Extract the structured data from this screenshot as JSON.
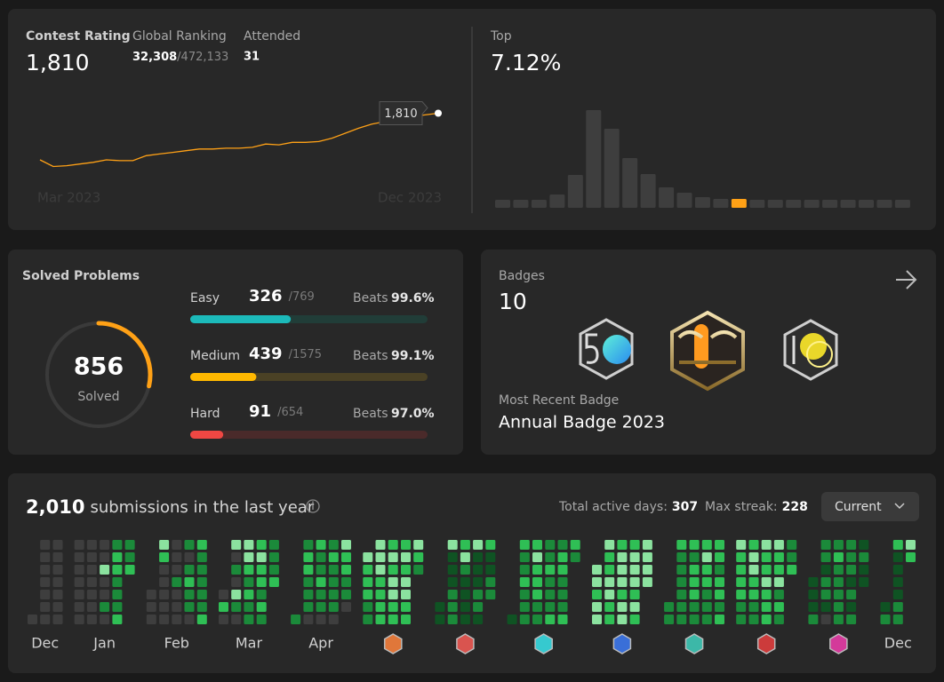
{
  "contest": {
    "rating_label": "Contest Rating",
    "rating": "1,810",
    "ranking_label": "Global Ranking",
    "ranking": "32,308",
    "ranking_total": "/472,133",
    "attended_label": "Attended",
    "attended": "31"
  },
  "chart_data": [
    {
      "type": "line",
      "x_labels": [
        "Mar 2023",
        "Dec 2023"
      ],
      "color": "#ffa116",
      "ylim": [
        1450,
        1850
      ],
      "values": [
        1530,
        1490,
        1495,
        1505,
        1515,
        1530,
        1525,
        1525,
        1555,
        1565,
        1575,
        1585,
        1595,
        1595,
        1600,
        1600,
        1605,
        1625,
        1620,
        1635,
        1635,
        1640,
        1660,
        1690,
        1720,
        1745,
        1760,
        1755,
        1790,
        1800,
        1810
      ]
    },
    {
      "type": "bar",
      "title": "Top",
      "subtitle": "7.12%",
      "color": "#3e3e3e",
      "highlight_index": 13,
      "highlight_color": "#ffa116",
      "ylim": [
        0,
        110
      ],
      "values": [
        9,
        9,
        9,
        15,
        37,
        110,
        89,
        56,
        38,
        23,
        17,
        12,
        10,
        10,
        9,
        9,
        9,
        9,
        9,
        9,
        9,
        9,
        9
      ]
    }
  ],
  "solved": {
    "title": "Solved Problems",
    "total": 856,
    "total_label": "Solved",
    "beats_label": "Beats",
    "difficulties": [
      {
        "name": "Easy",
        "solved": 326,
        "total": 769,
        "total_label": "/769",
        "beats": "99.6%",
        "color": "#1cbaba",
        "track": "#213d38"
      },
      {
        "name": "Medium",
        "solved": 439,
        "total": 1575,
        "total_label": "/1575",
        "beats": "99.1%",
        "color": "#ffb800",
        "track": "#4a4125"
      },
      {
        "name": "Hard",
        "solved": 91,
        "total": 654,
        "total_label": "/654",
        "beats": "97.0%",
        "color": "#ef4743",
        "track": "#4a2a2a"
      }
    ]
  },
  "badges": {
    "title": "Badges",
    "count": "10",
    "recent_label": "Most Recent Badge",
    "recent": "Annual Badge 2023"
  },
  "submissions": {
    "count": "2,010",
    "text": "submissions in the last year",
    "active_label": "Total active days:",
    "active": "307",
    "streak_label": "Max streak:",
    "streak": "228",
    "dropdown": "Current",
    "level_colors": [
      "#3e3e3e",
      "#0f5323",
      "#1b8a3a",
      "#2fbf55",
      "#8be29f"
    ],
    "months": [
      {
        "label": "Dec",
        "weeks": [
          [
            null,
            null,
            null,
            null,
            null,
            null,
            0
          ],
          [
            0,
            0,
            0,
            0,
            0,
            0,
            0
          ],
          [
            0,
            0,
            0,
            0,
            0,
            0,
            0
          ]
        ]
      },
      {
        "label": "Jan",
        "weeks": [
          [
            0,
            0,
            0,
            0,
            0,
            0,
            0
          ],
          [
            0,
            0,
            0,
            0,
            0,
            0,
            0
          ],
          [
            0,
            0,
            4,
            0,
            0,
            2,
            0
          ],
          [
            2,
            3,
            3,
            2,
            2,
            2,
            3
          ],
          [
            2,
            2,
            3,
            null,
            null,
            null,
            null
          ]
        ]
      },
      {
        "label": "Feb",
        "weeks": [
          [
            null,
            null,
            null,
            null,
            0,
            0,
            0
          ],
          [
            4,
            3,
            0,
            0,
            0,
            0,
            0
          ],
          [
            0,
            0,
            0,
            2,
            0,
            0,
            0
          ],
          [
            2,
            0,
            2,
            3,
            2,
            2,
            0
          ],
          [
            3,
            2,
            2,
            2,
            2,
            2,
            3
          ]
        ]
      },
      {
        "label": "Mar",
        "weeks": [
          [
            null,
            null,
            null,
            null,
            0,
            3,
            0
          ],
          [
            4,
            0,
            2,
            0,
            4,
            2,
            0
          ],
          [
            4,
            4,
            3,
            2,
            3,
            2,
            2
          ],
          [
            3,
            4,
            3,
            3,
            2,
            3,
            2
          ],
          [
            2,
            2,
            2,
            3,
            null,
            null,
            null
          ]
        ]
      },
      {
        "label": "Apr",
        "weeks": [
          [
            null,
            null,
            null,
            null,
            null,
            null,
            2
          ],
          [
            2,
            3,
            3,
            2,
            2,
            2,
            0
          ],
          [
            3,
            2,
            2,
            3,
            2,
            2,
            0
          ],
          [
            2,
            3,
            2,
            2,
            2,
            2,
            0
          ],
          [
            4,
            3,
            3,
            2,
            2,
            0,
            null
          ]
        ]
      },
      {
        "label": null,
        "icon_color": "#e0773a",
        "weeks": [
          [
            null,
            4,
            3,
            3,
            3,
            2,
            2
          ],
          [
            4,
            4,
            4,
            3,
            3,
            3,
            3
          ],
          [
            3,
            4,
            3,
            4,
            4,
            3,
            3
          ],
          [
            3,
            4,
            3,
            4,
            4,
            3,
            3
          ],
          [
            4,
            3,
            2,
            null,
            null,
            null,
            null
          ]
        ]
      },
      {
        "label": null,
        "icon_color": "#d9544f",
        "weeks": [
          [
            null,
            null,
            null,
            null,
            null,
            1,
            1
          ],
          [
            4,
            1,
            1,
            1,
            2,
            2,
            2
          ],
          [
            3,
            4,
            2,
            1,
            1,
            1,
            1
          ],
          [
            4,
            1,
            1,
            1,
            2,
            2,
            1
          ],
          [
            3,
            1,
            1,
            2,
            2,
            null,
            null
          ]
        ]
      },
      {
        "label": null,
        "icon_color": "#36c9cf",
        "weeks": [
          [
            null,
            null,
            null,
            null,
            null,
            null,
            1
          ],
          [
            3,
            2,
            2,
            3,
            2,
            2,
            2
          ],
          [
            3,
            4,
            3,
            3,
            3,
            2,
            2
          ],
          [
            2,
            2,
            3,
            2,
            2,
            2,
            3
          ],
          [
            2,
            3,
            3,
            2,
            2,
            2,
            3
          ],
          [
            3,
            2,
            null,
            null,
            null,
            null,
            null
          ]
        ]
      },
      {
        "label": null,
        "icon_color": "#3a6fd8",
        "weeks": [
          [
            null,
            null,
            4,
            4,
            3,
            4,
            4
          ],
          [
            4,
            3,
            3,
            4,
            4,
            3,
            3
          ],
          [
            3,
            4,
            4,
            4,
            3,
            4,
            4
          ],
          [
            3,
            4,
            4,
            4,
            3,
            4,
            3
          ],
          [
            4,
            4,
            4,
            4,
            null,
            null,
            null
          ]
        ]
      },
      {
        "label": null,
        "icon_color": "#3cb8a8",
        "weeks": [
          [
            null,
            null,
            null,
            null,
            null,
            2,
            2
          ],
          [
            3,
            2,
            2,
            2,
            2,
            2,
            2
          ],
          [
            3,
            2,
            3,
            3,
            3,
            2,
            2
          ],
          [
            3,
            4,
            3,
            3,
            2,
            2,
            2
          ],
          [
            3,
            3,
            2,
            3,
            3,
            2,
            3
          ]
        ]
      },
      {
        "label": null,
        "icon_color": "#cc3b3b",
        "weeks": [
          [
            4,
            3,
            3,
            3,
            3,
            2,
            2
          ],
          [
            3,
            4,
            4,
            3,
            3,
            2,
            2
          ],
          [
            4,
            3,
            3,
            4,
            3,
            3,
            3
          ],
          [
            4,
            3,
            3,
            4,
            2,
            3,
            2
          ],
          [
            2,
            2,
            3,
            null,
            null,
            null,
            null
          ]
        ]
      },
      {
        "label": null,
        "icon_color": "#d43a9a",
        "weeks": [
          [
            null,
            null,
            null,
            1,
            1,
            1,
            2
          ],
          [
            2,
            2,
            1,
            2,
            2,
            1,
            0
          ],
          [
            2,
            3,
            2,
            2,
            2,
            2,
            2
          ],
          [
            2,
            2,
            2,
            1,
            2,
            1,
            2
          ],
          [
            1,
            2,
            1,
            1,
            null,
            null,
            null
          ]
        ]
      },
      {
        "label": "Dec",
        "weeks": [
          [
            null,
            null,
            null,
            null,
            null,
            1,
            2
          ],
          [
            3,
            1,
            1,
            1,
            1,
            2,
            2
          ],
          [
            4,
            3,
            null,
            null,
            null,
            null,
            null
          ]
        ]
      }
    ]
  }
}
